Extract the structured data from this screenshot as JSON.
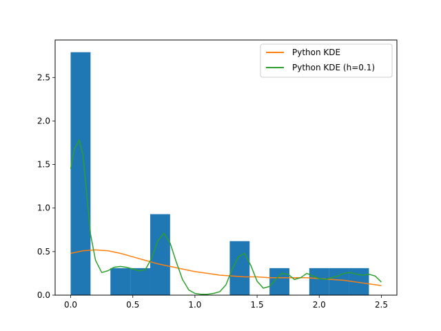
{
  "chart_data": {
    "type": "bar",
    "title": "",
    "xlabel": "",
    "ylabel": "",
    "xlim": [
      -0.125,
      2.625
    ],
    "ylim": [
      0.0,
      2.93
    ],
    "x_ticks": [
      0.0,
      0.5,
      1.0,
      1.5,
      2.0,
      2.5
    ],
    "x_tick_labels": [
      "0.0",
      "0.5",
      "1.0",
      "1.5",
      "2.0",
      "2.5"
    ],
    "y_ticks": [
      0.0,
      0.5,
      1.0,
      1.5,
      2.0,
      2.5
    ],
    "y_tick_labels": [
      "0.0",
      "0.5",
      "1.0",
      "1.5",
      "2.0",
      "2.5"
    ],
    "grid": false,
    "legend_position": "top-right",
    "histogram": {
      "name": "histogram",
      "color": "#1f77b4",
      "bin_edges": [
        0.0,
        0.16,
        0.32,
        0.48,
        0.64,
        0.8,
        0.96,
        1.12,
        1.28,
        1.44,
        1.6,
        1.76,
        1.92,
        2.08,
        2.24,
        2.4
      ],
      "values": [
        2.79,
        0.0,
        0.31,
        0.31,
        0.93,
        0.0,
        0.0,
        0.0,
        0.62,
        0.0,
        0.31,
        0.0,
        0.31,
        0.31,
        0.31
      ]
    },
    "series": [
      {
        "name": "Python KDE",
        "type": "line",
        "color": "#ff7f0e",
        "x": [
          0.0,
          0.1,
          0.2,
          0.3,
          0.4,
          0.5,
          0.6,
          0.7,
          0.8,
          0.9,
          1.0,
          1.1,
          1.2,
          1.3,
          1.4,
          1.5,
          1.6,
          1.7,
          1.8,
          1.9,
          2.0,
          2.1,
          2.2,
          2.3,
          2.4,
          2.5
        ],
        "y": [
          0.48,
          0.51,
          0.52,
          0.51,
          0.48,
          0.44,
          0.4,
          0.36,
          0.33,
          0.3,
          0.27,
          0.25,
          0.23,
          0.22,
          0.21,
          0.21,
          0.2,
          0.2,
          0.2,
          0.2,
          0.19,
          0.18,
          0.17,
          0.15,
          0.13,
          0.11
        ]
      },
      {
        "name": "Python KDE (h=0.1)",
        "type": "line",
        "color": "#2ca02c",
        "x": [
          0.0,
          0.03,
          0.07,
          0.1,
          0.13,
          0.16,
          0.2,
          0.25,
          0.3,
          0.35,
          0.4,
          0.45,
          0.5,
          0.55,
          0.6,
          0.65,
          0.7,
          0.75,
          0.8,
          0.85,
          0.9,
          0.95,
          1.0,
          1.05,
          1.1,
          1.15,
          1.2,
          1.25,
          1.3,
          1.35,
          1.4,
          1.45,
          1.5,
          1.55,
          1.6,
          1.65,
          1.7,
          1.75,
          1.8,
          1.85,
          1.9,
          1.95,
          2.0,
          2.05,
          2.1,
          2.15,
          2.2,
          2.25,
          2.3,
          2.35,
          2.4,
          2.45,
          2.5
        ],
        "y": [
          1.45,
          1.68,
          1.78,
          1.6,
          1.15,
          0.7,
          0.4,
          0.26,
          0.28,
          0.32,
          0.33,
          0.32,
          0.3,
          0.28,
          0.29,
          0.42,
          0.62,
          0.71,
          0.6,
          0.38,
          0.18,
          0.06,
          0.02,
          0.01,
          0.01,
          0.02,
          0.04,
          0.12,
          0.3,
          0.44,
          0.48,
          0.34,
          0.16,
          0.08,
          0.1,
          0.18,
          0.25,
          0.24,
          0.18,
          0.2,
          0.25,
          0.22,
          0.19,
          0.18,
          0.2,
          0.22,
          0.25,
          0.26,
          0.24,
          0.23,
          0.24,
          0.22,
          0.15
        ]
      }
    ]
  }
}
